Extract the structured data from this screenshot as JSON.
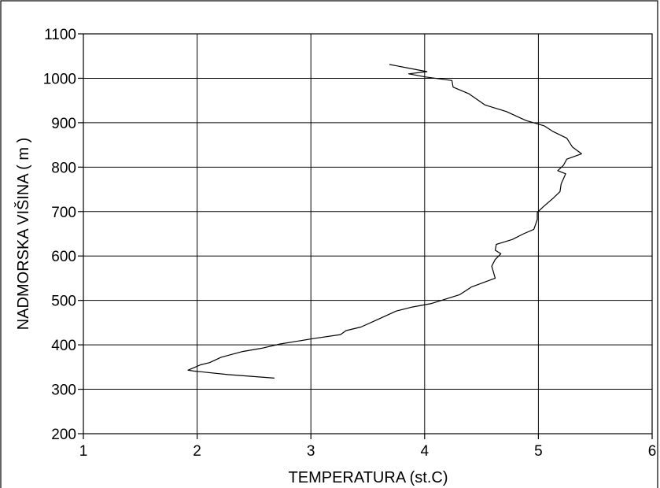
{
  "chart_data": {
    "type": "line",
    "title": "",
    "xlabel": "TEMPERATURA (st.C)",
    "ylabel": "NADMORSKA VIŠINA ( m )",
    "xlim": [
      1,
      6
    ],
    "ylim": [
      200,
      1100
    ],
    "xticks": [
      "1",
      "2",
      "3",
      "4",
      "5",
      "6"
    ],
    "yticks": [
      "200",
      "300",
      "400",
      "500",
      "600",
      "700",
      "800",
      "900",
      "1000",
      "1100"
    ],
    "grid": true,
    "legend": "none",
    "colors": {
      "line": "#000000",
      "grid": "#000000",
      "background": "#ffffff"
    },
    "series": [
      {
        "points": [
          [
            3.69,
            1031
          ],
          [
            4.02,
            1015
          ],
          [
            3.86,
            1010
          ],
          [
            4.01,
            1003
          ],
          [
            4.24,
            995
          ],
          [
            4.25,
            980
          ],
          [
            4.39,
            965
          ],
          [
            4.53,
            940
          ],
          [
            4.72,
            925
          ],
          [
            4.89,
            905
          ],
          [
            5.05,
            893
          ],
          [
            5.13,
            880
          ],
          [
            5.25,
            865
          ],
          [
            5.3,
            845
          ],
          [
            5.38,
            830
          ],
          [
            5.25,
            818
          ],
          [
            5.22,
            804
          ],
          [
            5.17,
            792
          ],
          [
            5.24,
            785
          ],
          [
            5.2,
            762
          ],
          [
            5.19,
            745
          ],
          [
            5.13,
            730
          ],
          [
            5.04,
            710
          ],
          [
            4.99,
            698
          ],
          [
            4.99,
            682
          ],
          [
            4.96,
            660
          ],
          [
            4.87,
            650
          ],
          [
            4.77,
            637
          ],
          [
            4.63,
            626
          ],
          [
            4.62,
            613
          ],
          [
            4.67,
            605
          ],
          [
            4.62,
            592
          ],
          [
            4.59,
            577
          ],
          [
            4.62,
            550
          ],
          [
            4.41,
            530
          ],
          [
            4.31,
            513
          ],
          [
            4.06,
            493
          ],
          [
            3.89,
            485
          ],
          [
            3.75,
            476
          ],
          [
            3.57,
            455
          ],
          [
            3.44,
            440
          ],
          [
            3.31,
            432
          ],
          [
            3.26,
            423
          ],
          [
            3.02,
            414
          ],
          [
            2.73,
            402
          ],
          [
            2.58,
            393
          ],
          [
            2.4,
            385
          ],
          [
            2.21,
            372
          ],
          [
            2.11,
            360
          ],
          [
            2.03,
            355
          ],
          [
            1.92,
            343
          ],
          [
            1.97,
            341
          ],
          [
            2.27,
            333
          ],
          [
            2.68,
            325
          ]
        ]
      }
    ]
  }
}
